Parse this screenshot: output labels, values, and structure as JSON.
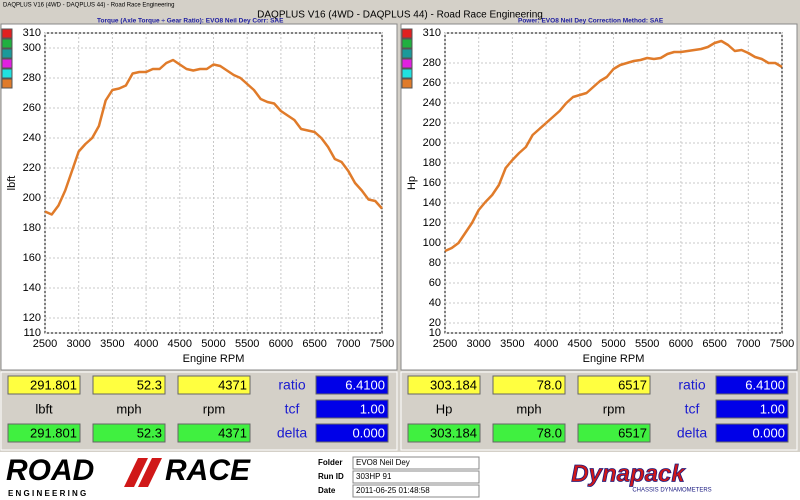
{
  "window_title": "DAQPLUS V16 (4WD - DAQPLUS 44) - Road Race Engineering",
  "header": "DAQPLUS V16 (4WD - DAQPLUS 44) - Road Race Engineering",
  "chart_data": [
    {
      "type": "line",
      "title": "Torque (Axle Torque ÷ Gear Ratio): EVO8 Neil Dey     Corr: SAE",
      "x_label": "Engine RPM",
      "y_label": "lbft",
      "x": [
        2500,
        2600,
        2700,
        2800,
        2900,
        3000,
        3100,
        3200,
        3300,
        3400,
        3500,
        3600,
        3700,
        3800,
        3900,
        4000,
        4100,
        4200,
        4300,
        4400,
        4500,
        4600,
        4700,
        4800,
        4900,
        5000,
        5100,
        5200,
        5300,
        5400,
        5500,
        5600,
        5700,
        5800,
        5900,
        6000,
        6100,
        6200,
        6300,
        6400,
        6500,
        6600,
        6700,
        6800,
        6900,
        7000,
        7100,
        7200,
        7300,
        7400,
        7500
      ],
      "series": [
        {
          "color": "#e07b2a",
          "values": [
            191,
            189,
            195,
            205,
            218,
            231,
            236,
            240,
            248,
            265,
            272,
            273,
            275,
            283,
            284,
            284,
            286,
            286,
            290,
            292,
            289,
            286,
            285,
            286,
            286,
            289,
            288,
            285,
            282,
            280,
            276,
            272,
            266,
            264,
            263,
            258,
            255,
            252,
            246,
            245,
            244,
            240,
            234,
            226,
            224,
            218,
            210,
            205,
            199,
            198,
            193
          ]
        }
      ],
      "xlim": [
        2500,
        7500
      ],
      "xticks": [
        2500,
        3000,
        3500,
        4000,
        4500,
        5000,
        5500,
        6000,
        6500,
        7000,
        7500
      ],
      "ylim": [
        110,
        310
      ],
      "yticks": [
        110,
        120,
        140,
        160,
        180,
        200,
        220,
        240,
        260,
        280,
        300,
        310
      ],
      "grid": true
    },
    {
      "type": "line",
      "title": "Power: EVO8 Neil Dey     Correction Method: SAE",
      "x_label": "Engine RPM",
      "y_label": "Hp",
      "x": [
        2500,
        2600,
        2700,
        2800,
        2900,
        3000,
        3100,
        3200,
        3300,
        3400,
        3500,
        3600,
        3700,
        3800,
        3900,
        4000,
        4100,
        4200,
        4300,
        4400,
        4500,
        4600,
        4700,
        4800,
        4900,
        5000,
        5100,
        5200,
        5300,
        5400,
        5500,
        5600,
        5700,
        5800,
        5900,
        6000,
        6100,
        6200,
        6300,
        6400,
        6500,
        6600,
        6700,
        6800,
        6900,
        7000,
        7100,
        7200,
        7300,
        7400,
        7500
      ],
      "series": [
        {
          "color": "#e07b2a",
          "values": [
            92,
            95,
            100,
            110,
            120,
            133,
            141,
            148,
            158,
            175,
            183,
            190,
            196,
            208,
            214,
            220,
            226,
            232,
            240,
            246,
            248,
            250,
            256,
            262,
            266,
            274,
            278,
            280,
            282,
            283,
            285,
            284,
            285,
            289,
            291,
            291,
            292,
            293,
            294,
            296,
            300,
            302,
            298,
            292,
            293,
            290,
            286,
            284,
            280,
            280,
            276
          ]
        }
      ],
      "xlim": [
        2500,
        7500
      ],
      "xticks": [
        2500,
        3000,
        3500,
        4000,
        4500,
        5000,
        5500,
        6000,
        6500,
        7000,
        7500
      ],
      "ylim": [
        10,
        310
      ],
      "yticks": [
        10,
        20,
        40,
        60,
        80,
        100,
        120,
        140,
        160,
        180,
        200,
        220,
        240,
        260,
        280,
        310
      ],
      "grid": true
    }
  ],
  "readouts": [
    {
      "top": [
        "291.801",
        "52.3",
        "4371"
      ],
      "units": [
        "lbft",
        "mph",
        "rpm"
      ],
      "bottom": [
        "291.801",
        "52.3",
        "4371"
      ],
      "side_labels": [
        "ratio",
        "tcf",
        "delta"
      ],
      "side_values": [
        "6.4100",
        "1.00",
        "0.000"
      ]
    },
    {
      "top": [
        "303.184",
        "78.0",
        "6517"
      ],
      "units": [
        "Hp",
        "mph",
        "rpm"
      ],
      "bottom": [
        "303.184",
        "78.0",
        "6517"
      ],
      "side_labels": [
        "ratio",
        "tcf",
        "delta"
      ],
      "side_values": [
        "6.4100",
        "1.00",
        "0.000"
      ]
    }
  ],
  "footer": {
    "logo_left": [
      "ROAD",
      "RACE"
    ],
    "logo_sub": "E N G I N E E R I N G",
    "fields": [
      [
        "Folder",
        "EVO8 Neil Dey"
      ],
      [
        "Run ID",
        "303HP 91"
      ],
      [
        "Date",
        "2011-06-25 01:48:58"
      ]
    ],
    "logo_right": "Dynapack",
    "logo_right_sub": "CHASSIS DYNAMOMETERS"
  }
}
